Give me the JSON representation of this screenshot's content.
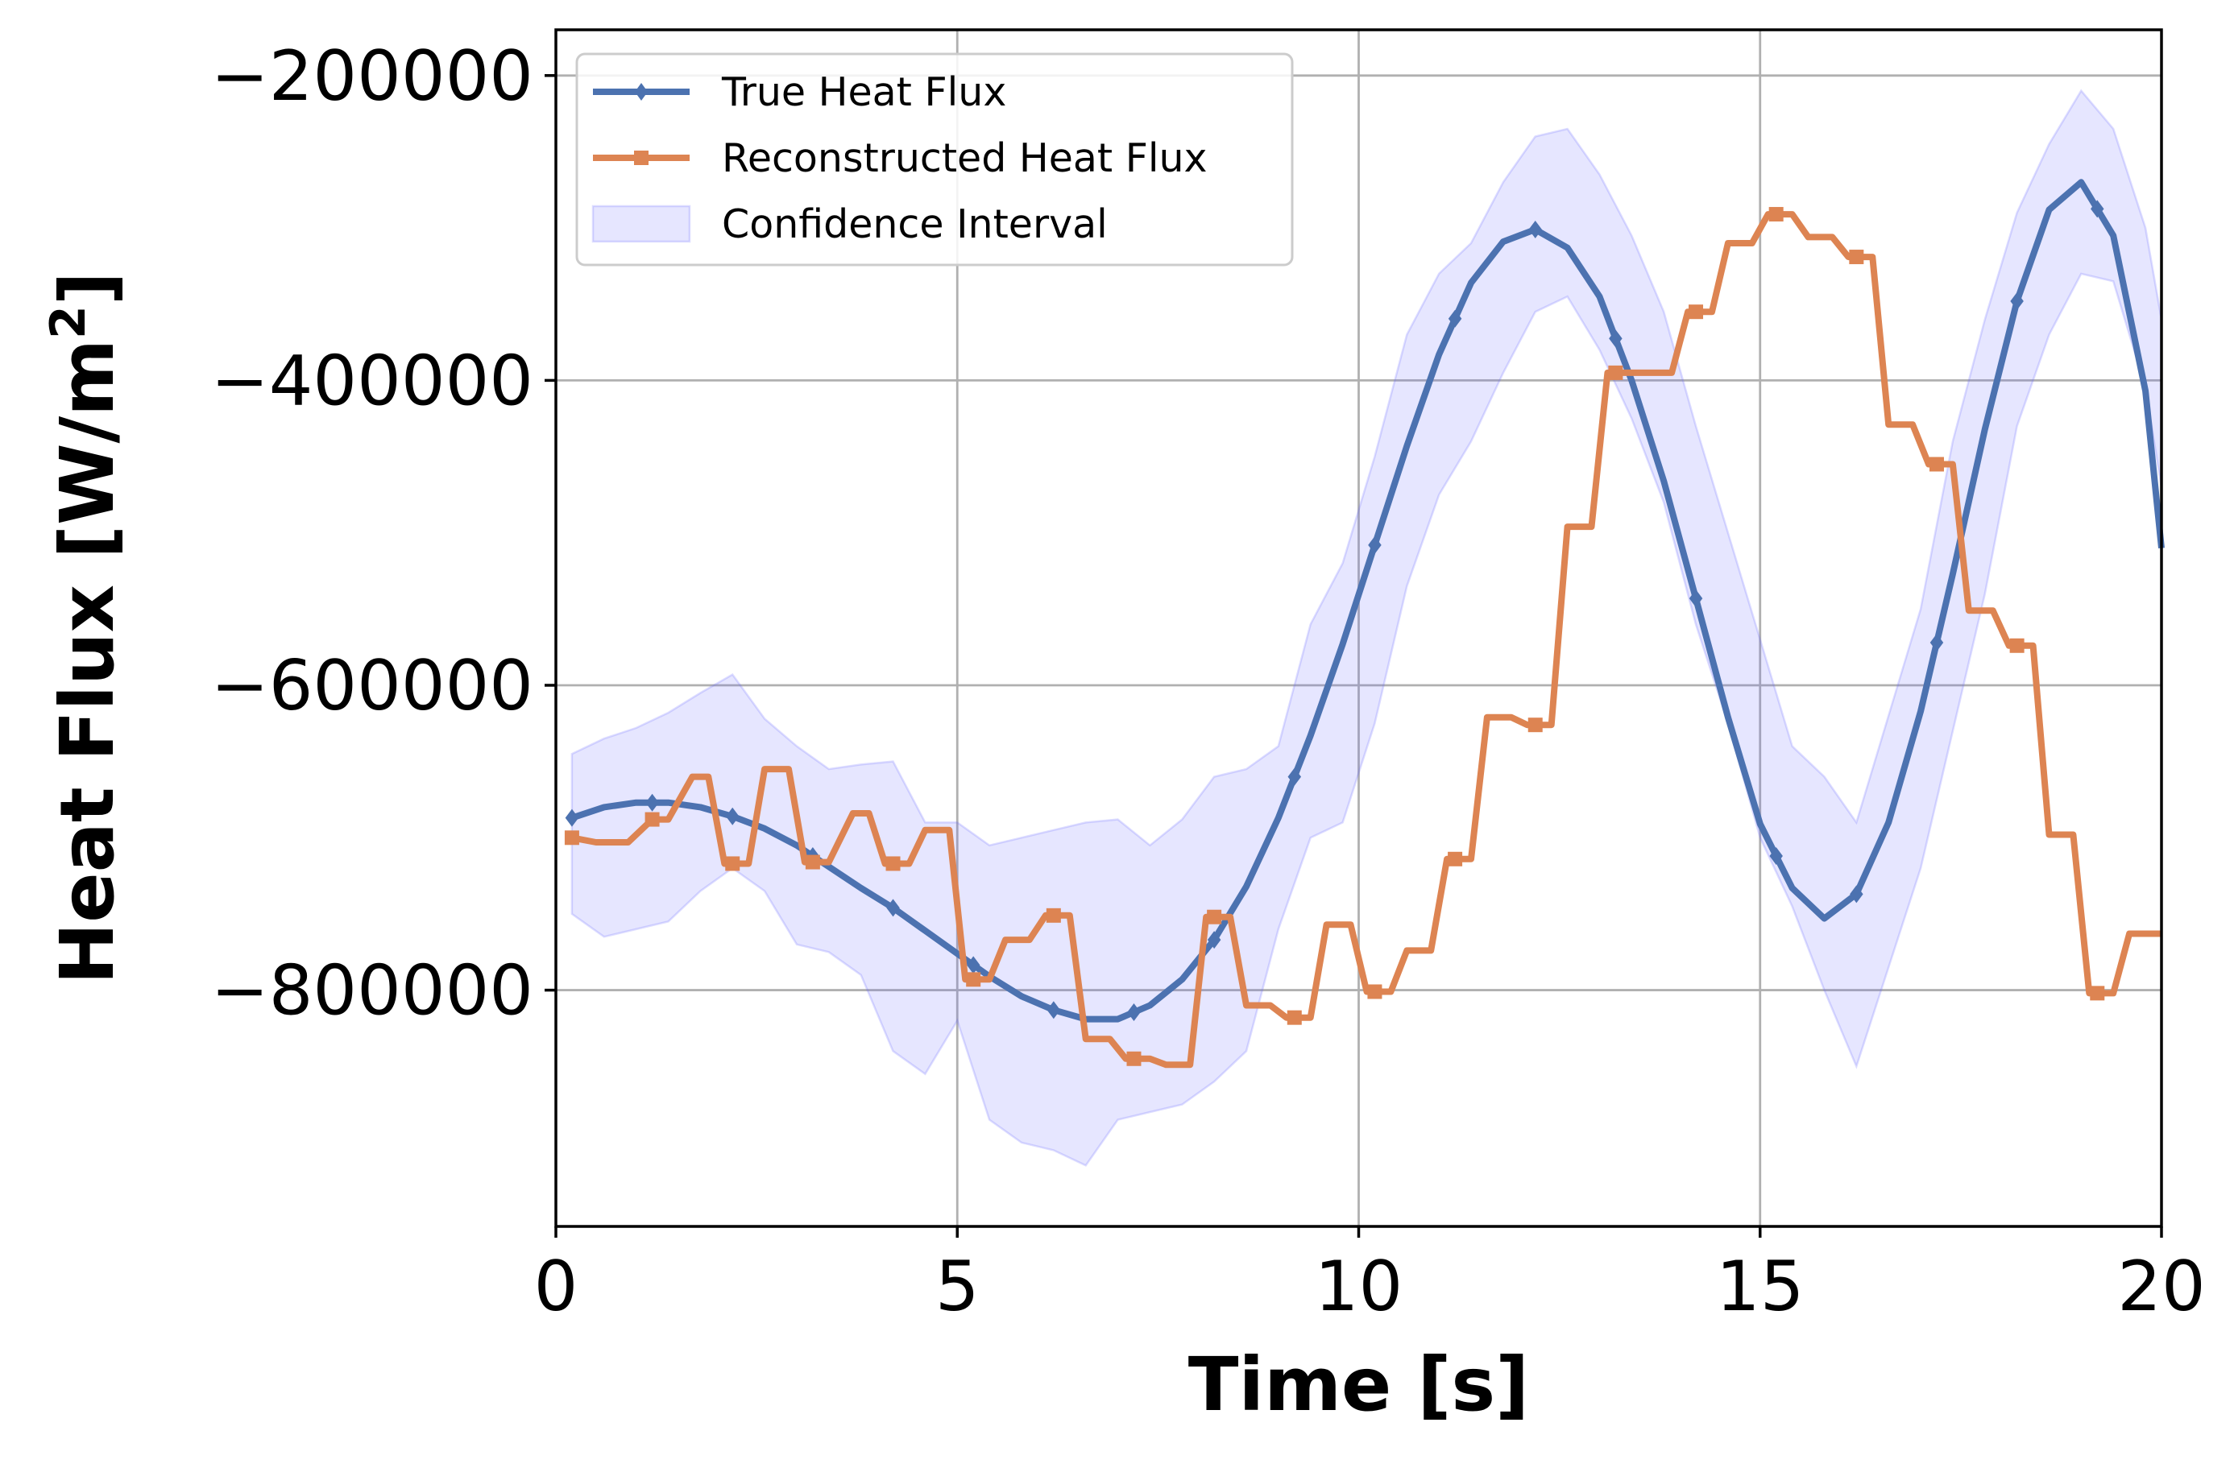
{
  "chart_data": {
    "type": "line",
    "xlabel": "Time [s]",
    "ylabel": "Heat Flux [W/m",
    "ylabel_sup": "2",
    "ylabel_end": "]",
    "xlim": [
      0,
      20
    ],
    "ylim": [
      -955000,
      -170000
    ],
    "xticks": [
      0,
      5,
      10,
      15,
      20
    ],
    "xtick_labels": [
      "0",
      "5",
      "10",
      "15",
      "20"
    ],
    "yticks": [
      -200000,
      -400000,
      -600000,
      -800000
    ],
    "ytick_labels": [
      "−200000",
      "−400000",
      "−600000",
      "−800000"
    ],
    "grid": true,
    "legend_position": "top-left",
    "series": [
      {
        "name": "True Heat Flux",
        "color": "#4c72b0",
        "marker": "diamond",
        "x": [
          0.2,
          0.6,
          1.0,
          1.4,
          1.8,
          2.2,
          2.6,
          3.0,
          3.4,
          3.8,
          4.2,
          4.6,
          5.0,
          5.4,
          5.8,
          6.2,
          6.6,
          7.0,
          7.4,
          7.8,
          8.2,
          8.6,
          9.0,
          9.4,
          9.8,
          10.2,
          10.6,
          11.0,
          11.4,
          11.8,
          12.2,
          12.6,
          13.0,
          13.4,
          13.8,
          14.2,
          14.6,
          15.0,
          15.4,
          15.8,
          16.2,
          16.6,
          17.0,
          17.4,
          17.8,
          18.2,
          18.6,
          19.0,
          19.4,
          19.8,
          20.0
        ],
        "y": [
          -687000,
          -680000,
          -677000,
          -677000,
          -680000,
          -686000,
          -694000,
          -705000,
          -719000,
          -733000,
          -746000,
          -761000,
          -776000,
          -791000,
          -804000,
          -813000,
          -819000,
          -819000,
          -810000,
          -793000,
          -767000,
          -732000,
          -687000,
          -633000,
          -573000,
          -508000,
          -443000,
          -383000,
          -336000,
          -309000,
          -301000,
          -313000,
          -345000,
          -400000,
          -466000,
          -543000,
          -621000,
          -691000,
          -733000,
          -753000,
          -737000,
          -690000,
          -617000,
          -527000,
          -432000,
          -348000,
          -288000,
          -270000,
          -305000,
          -407000,
          -510000
        ],
        "marker_x": [
          0.2,
          1.2,
          2.2,
          3.2,
          4.2,
          5.2,
          6.2,
          7.2,
          8.2,
          9.2,
          10.2,
          11.2,
          12.2,
          13.2,
          14.2,
          15.2,
          16.2,
          17.2,
          18.2,
          19.2
        ]
      },
      {
        "name": "Reconstructed Heat Flux",
        "color": "#dd8452",
        "marker": "square",
        "x": [
          0.2,
          0.5,
          0.9,
          1.2,
          1.4,
          1.7,
          1.9,
          2.1,
          2.4,
          2.6,
          2.9,
          3.1,
          3.4,
          3.7,
          3.9,
          4.1,
          4.4,
          4.6,
          4.9,
          5.1,
          5.4,
          5.6,
          5.9,
          6.1,
          6.4,
          6.6,
          6.9,
          7.1,
          7.4,
          7.6,
          7.9,
          8.1,
          8.4,
          8.6,
          8.9,
          9.1,
          9.4,
          9.6,
          9.9,
          10.1,
          10.4,
          10.6,
          10.9,
          11.1,
          11.4,
          11.6,
          11.9,
          12.1,
          12.4,
          12.6,
          12.9,
          13.1,
          13.4,
          13.6,
          13.9,
          14.1,
          14.4,
          14.6,
          14.9,
          15.1,
          15.4,
          15.6,
          15.9,
          16.1,
          16.4,
          16.6,
          16.9,
          17.1,
          17.4,
          17.6,
          17.9,
          18.1,
          18.4,
          18.6,
          18.9,
          19.1,
          19.4,
          19.6,
          19.9,
          20.0
        ],
        "y": [
          -700000,
          -703000,
          -703000,
          -688000,
          -688000,
          -660000,
          -660000,
          -717000,
          -717000,
          -655000,
          -655000,
          -716000,
          -716000,
          -684000,
          -684000,
          -717000,
          -717000,
          -695000,
          -695000,
          -793000,
          -793000,
          -767000,
          -767000,
          -751000,
          -751000,
          -832000,
          -832000,
          -845000,
          -845000,
          -849000,
          -849000,
          -752000,
          -752000,
          -810000,
          -810000,
          -818000,
          -818000,
          -757000,
          -757000,
          -801000,
          -801000,
          -774000,
          -774000,
          -714000,
          -714000,
          -621000,
          -621000,
          -626000,
          -626000,
          -496000,
          -496000,
          -395000,
          -395000,
          -395000,
          -395000,
          -355000,
          -355000,
          -310000,
          -310000,
          -291000,
          -291000,
          -306000,
          -306000,
          -319000,
          -319000,
          -429000,
          -429000,
          -455000,
          -455000,
          -551000,
          -551000,
          -574000,
          -574000,
          -698000,
          -698000,
          -802000,
          -802000,
          -763000,
          -763000,
          -763000
        ],
        "marker_x": [
          0.2,
          1.2,
          2.2,
          3.2,
          4.2,
          5.2,
          6.2,
          7.2,
          8.2,
          9.2,
          10.2,
          11.2,
          12.2,
          13.2,
          14.2,
          15.2,
          16.2,
          17.2,
          18.2,
          19.2
        ]
      },
      {
        "name": "Confidence Interval",
        "color": "#6666ff",
        "type": "band",
        "x": [
          0.2,
          0.6,
          1.0,
          1.4,
          1.8,
          2.2,
          2.6,
          3.0,
          3.4,
          3.8,
          4.2,
          4.6,
          5.0,
          5.4,
          5.8,
          6.2,
          6.6,
          7.0,
          7.4,
          7.8,
          8.2,
          8.6,
          9.0,
          9.4,
          9.8,
          10.2,
          10.6,
          11.0,
          11.4,
          11.8,
          12.2,
          12.6,
          13.0,
          13.4,
          13.8,
          14.2,
          14.6,
          15.0,
          15.4,
          15.8,
          16.2,
          16.6,
          17.0,
          17.4,
          17.8,
          18.2,
          18.6,
          19.0,
          19.4,
          19.8,
          20.0
        ],
        "upper": [
          -645000,
          -635000,
          -628000,
          -618000,
          -605000,
          -593000,
          -622000,
          -640000,
          -655000,
          -652000,
          -650000,
          -690000,
          -690000,
          -705000,
          -700000,
          -695000,
          -690000,
          -688000,
          -705000,
          -688000,
          -660000,
          -655000,
          -640000,
          -560000,
          -520000,
          -450000,
          -370000,
          -330000,
          -310000,
          -270000,
          -240000,
          -235000,
          -265000,
          -305000,
          -355000,
          -430000,
          -500000,
          -570000,
          -640000,
          -660000,
          -690000,
          -620000,
          -550000,
          -440000,
          -360000,
          -290000,
          -245000,
          -210000,
          -235000,
          -300000,
          -360000
        ],
        "lower": [
          -750000,
          -765000,
          -760000,
          -755000,
          -735000,
          -720000,
          -735000,
          -770000,
          -775000,
          -790000,
          -840000,
          -855000,
          -820000,
          -885000,
          -900000,
          -905000,
          -915000,
          -885000,
          -880000,
          -875000,
          -860000,
          -840000,
          -760000,
          -700000,
          -690000,
          -625000,
          -535000,
          -475000,
          -440000,
          -395000,
          -355000,
          -345000,
          -380000,
          -425000,
          -480000,
          -560000,
          -625000,
          -700000,
          -745000,
          -800000,
          -850000,
          -785000,
          -720000,
          -630000,
          -540000,
          -430000,
          -370000,
          -330000,
          -335000,
          -405000,
          -470000
        ]
      }
    ]
  }
}
